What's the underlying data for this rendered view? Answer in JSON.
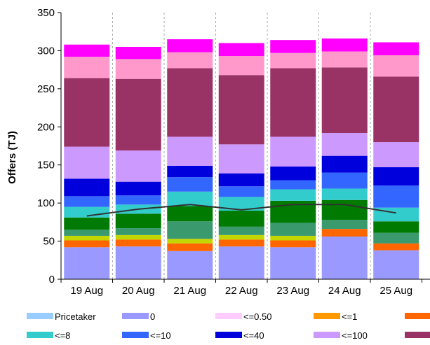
{
  "chart_data": {
    "type": "bar",
    "stacked": true,
    "title": "",
    "xlabel": "",
    "ylabel": "Offers (TJ)",
    "ylim": [
      0,
      350
    ],
    "yticks": [
      0,
      50,
      100,
      150,
      200,
      250,
      300,
      350
    ],
    "grid": "vertical dashed separators between categories",
    "legend_position": "bottom",
    "categories": [
      "19 Aug",
      "20 Aug",
      "21 Aug",
      "22 Aug",
      "23 Aug",
      "24 Aug",
      "25 Aug"
    ],
    "series": [
      {
        "name": "Pricetaker",
        "color": "#99ccff",
        "values": [
          0,
          0,
          0,
          0,
          0,
          0,
          0
        ]
      },
      {
        "name": "0",
        "color": "#9999ff",
        "values": [
          42,
          43,
          37,
          43,
          42,
          56,
          38
        ]
      },
      {
        "name": "<=0.50",
        "color": "#ffccff",
        "values": [
          0,
          0,
          0,
          0,
          0,
          0,
          0
        ]
      },
      {
        "name": "<=1",
        "color": "#ff9900",
        "values": [
          0,
          0,
          0,
          0,
          0,
          0,
          0
        ]
      },
      {
        "name": "",
        "color": "#ff6600",
        "values": [
          9,
          9,
          10,
          9,
          9,
          10,
          9
        ]
      },
      {
        "name": "",
        "color": "#c4d600",
        "values": [
          6,
          6,
          6,
          6,
          6,
          0,
          0
        ]
      },
      {
        "name": "",
        "color": "#3a9a6e",
        "values": [
          8,
          9,
          23,
          11,
          17,
          12,
          14
        ]
      },
      {
        "name": "",
        "color": "#007a00",
        "values": [
          16,
          19,
          20,
          21,
          29,
          26,
          15
        ]
      },
      {
        "name": "<=8",
        "color": "#33cccc",
        "values": [
          14,
          12,
          19,
          18,
          15,
          15,
          18
        ]
      },
      {
        "name": "<=10",
        "color": "#3366ff",
        "values": [
          14,
          12,
          19,
          14,
          12,
          21,
          29
        ]
      },
      {
        "name": "<=40",
        "color": "#0000dd",
        "values": [
          23,
          18,
          15,
          17,
          18,
          22,
          24
        ]
      },
      {
        "name": "<=100",
        "color": "#cc99ff",
        "values": [
          42,
          41,
          38,
          38,
          39,
          30,
          33
        ]
      },
      {
        "name": "",
        "color": "#993366",
        "values": [
          90,
          94,
          90,
          91,
          90,
          86,
          86
        ]
      },
      {
        "name": "",
        "color": "#ff99cc",
        "values": [
          28,
          26,
          21,
          25,
          20,
          21,
          28
        ]
      },
      {
        "name": "",
        "color": "#ff00ff",
        "values": [
          16,
          16,
          17,
          17,
          17,
          17,
          17
        ]
      }
    ],
    "line_series": {
      "name": "",
      "color": "#333333",
      "values": [
        83,
        92,
        98,
        91,
        98,
        98,
        87
      ]
    }
  },
  "legend": {
    "row1": [
      "Pricetaker",
      "0",
      "<=0.50",
      "<=1",
      ""
    ],
    "row2": [
      "<=8",
      "<=10",
      "<=40",
      "<=100",
      ""
    ]
  }
}
